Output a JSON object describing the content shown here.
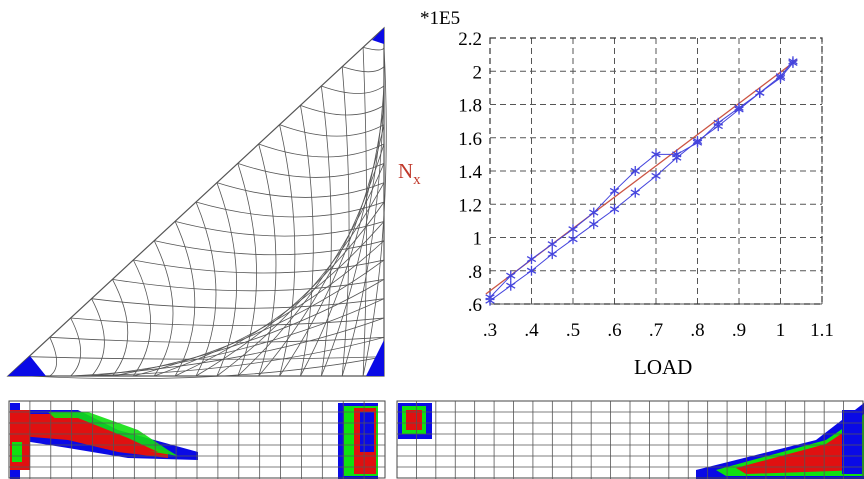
{
  "chart_data": {
    "type": "line",
    "xlabel": "LOAD",
    "ylabel": "N",
    "ylabel_subscript": "x",
    "y_multiplier": "*1E5",
    "xlim": [
      0.3,
      1.1
    ],
    "ylim": [
      0.6,
      2.2
    ],
    "x_ticks": [
      ".3",
      ".4",
      ".5",
      ".6",
      ".7",
      ".8",
      ".9",
      "1",
      "1.1"
    ],
    "y_ticks": [
      ".6",
      ".8",
      "1",
      "1.2",
      "1.4",
      "1.6",
      "1.8",
      "2",
      "2.2"
    ],
    "grid": true,
    "series": [
      {
        "marker": "star",
        "color": "#4444dd",
        "x": [
          0.3,
          0.35,
          0.4,
          0.45,
          0.5,
          0.55,
          0.6,
          0.65,
          0.7,
          0.75,
          0.8,
          0.85,
          0.9,
          0.95,
          1.0,
          1.03
        ],
        "y": [
          0.64,
          0.77,
          0.87,
          0.96,
          1.05,
          1.15,
          1.28,
          1.4,
          1.5,
          1.5,
          1.57,
          1.69,
          1.78,
          1.87,
          1.97,
          2.06
        ]
      },
      {
        "marker": "star",
        "color": "#4444dd",
        "x": [
          0.3,
          0.35,
          0.4,
          0.45,
          0.5,
          0.55,
          0.6,
          0.65,
          0.7,
          0.75,
          0.8,
          0.85,
          0.9,
          0.95,
          1.0,
          1.03
        ],
        "y": [
          0.62,
          0.71,
          0.8,
          0.9,
          0.99,
          1.08,
          1.17,
          1.27,
          1.37,
          1.48,
          1.58,
          1.67,
          1.77,
          1.87,
          1.96,
          2.05
        ]
      }
    ],
    "trend_line": {
      "color": "#cc5544",
      "x": [
        0.29,
        1.04
      ],
      "y": [
        0.66,
        2.07
      ]
    }
  },
  "colors": {
    "mesh": "#555555",
    "blue": "#0a0ae6",
    "red": "#e01010",
    "green": "#10e010",
    "label_red": "#c0392b"
  }
}
